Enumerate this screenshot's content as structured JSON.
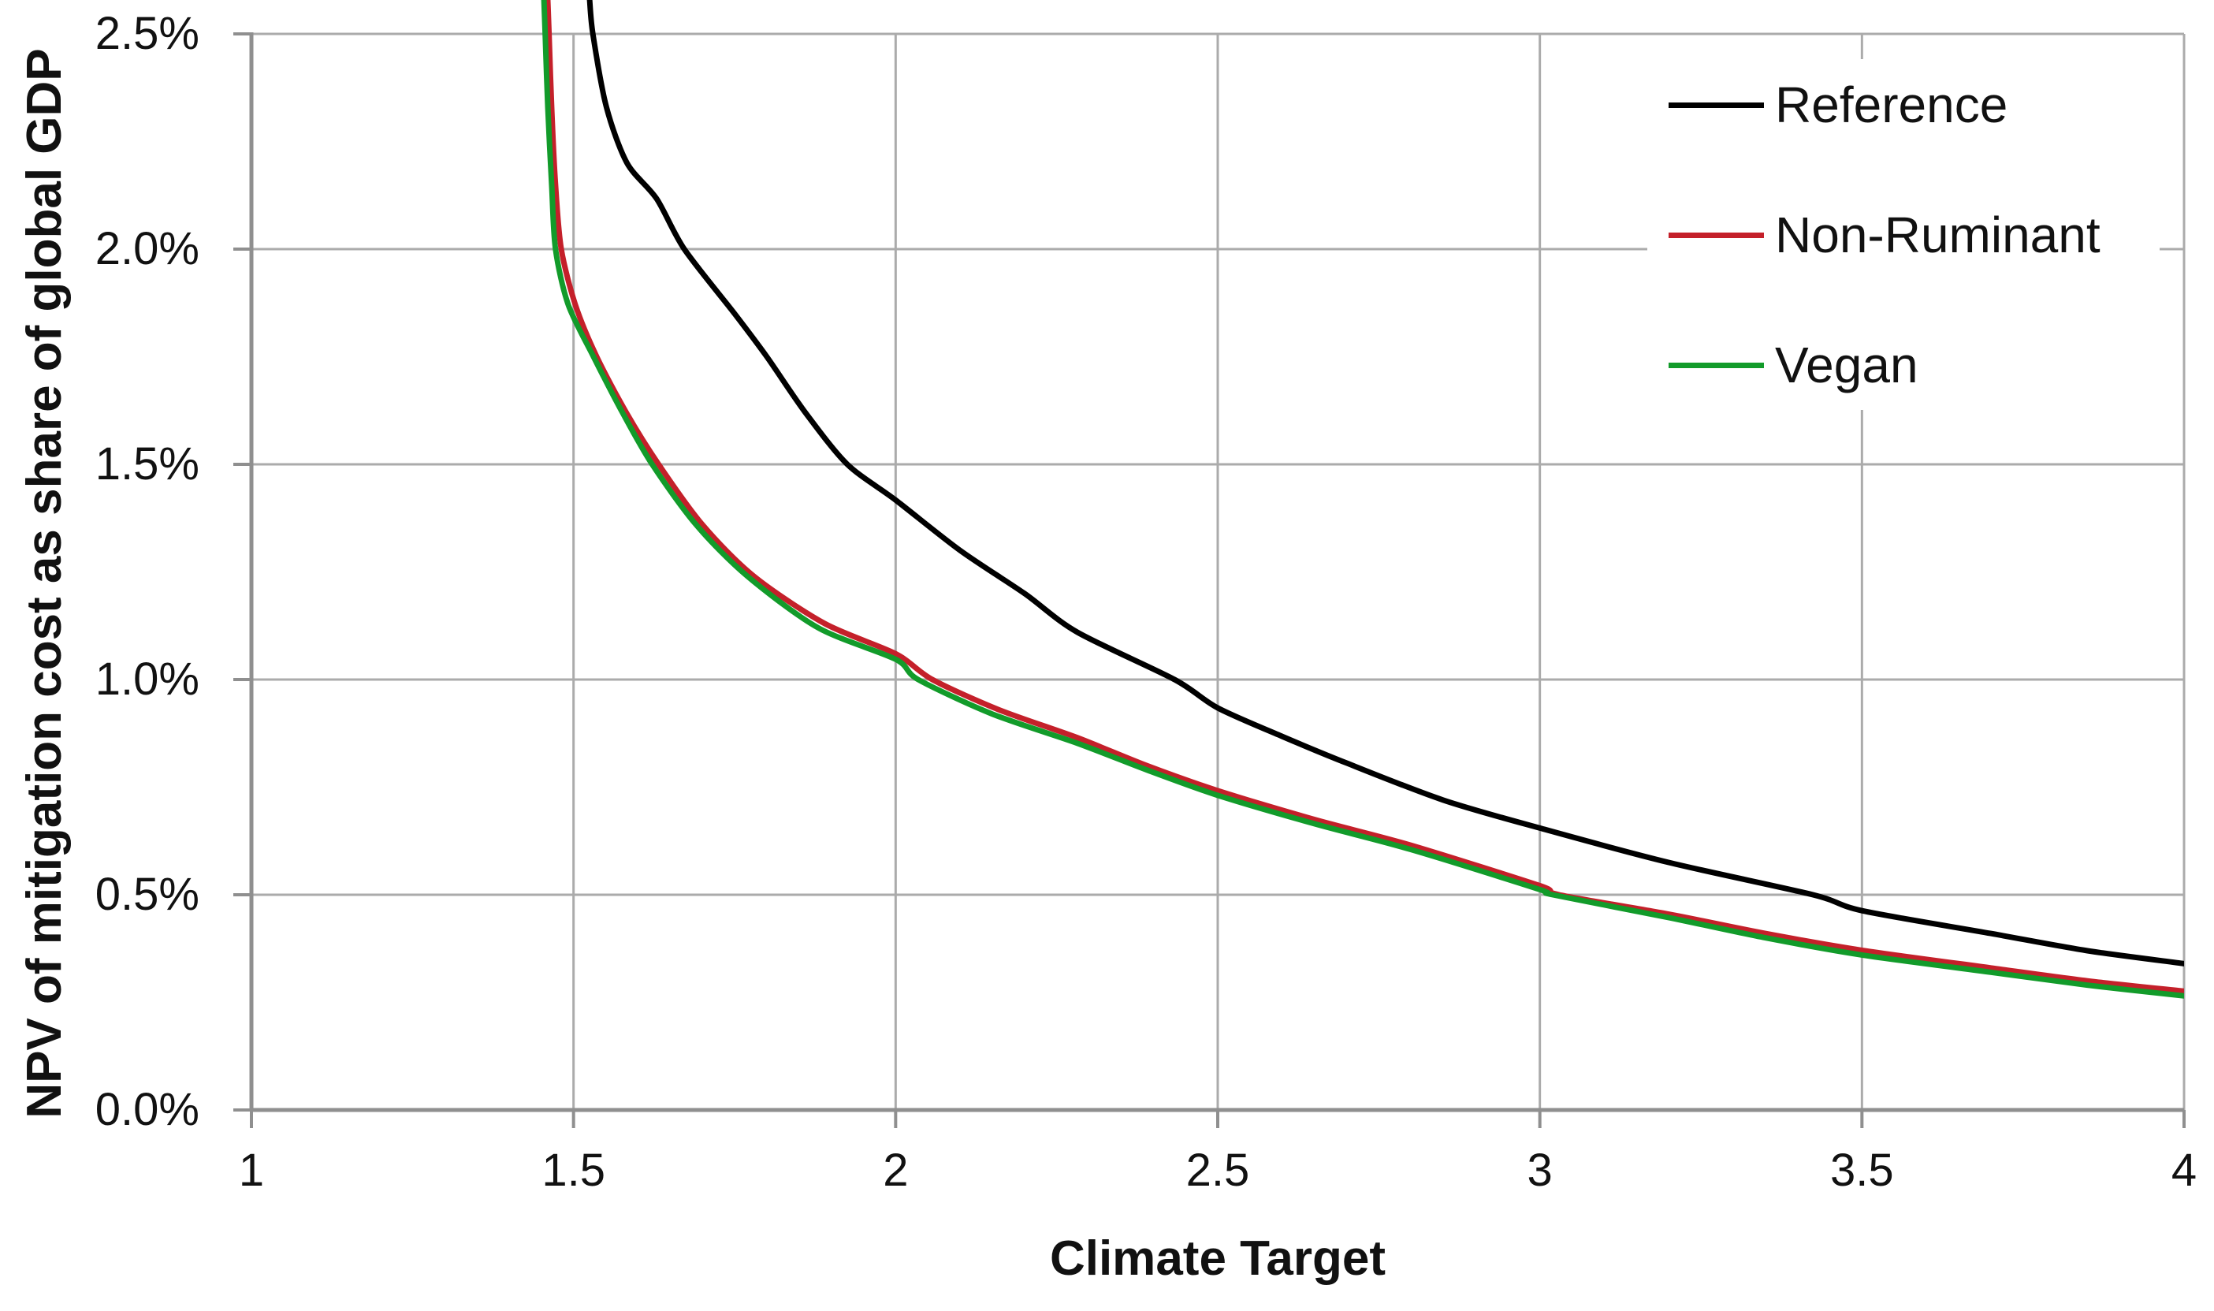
{
  "chart_data": {
    "type": "line",
    "title": "",
    "xlabel": "Climate Target",
    "ylabel": "NPV of mitigation cost as share of global GDP",
    "xlim": [
      1,
      4
    ],
    "ylim": [
      0.0,
      2.5
    ],
    "y_unit": "percent",
    "grid": true,
    "legend_position": "top-right",
    "x_ticks": [
      {
        "value": 1,
        "label": "1"
      },
      {
        "value": 1.5,
        "label": "1.5"
      },
      {
        "value": 2,
        "label": "2"
      },
      {
        "value": 2.5,
        "label": "2.5"
      },
      {
        "value": 3,
        "label": "3"
      },
      {
        "value": 3.5,
        "label": "3.5"
      },
      {
        "value": 4,
        "label": "4"
      }
    ],
    "y_ticks": [
      {
        "value": 0.0,
        "label": "0.0%"
      },
      {
        "value": 0.5,
        "label": "0.5%"
      },
      {
        "value": 1.0,
        "label": "1.0%"
      },
      {
        "value": 1.5,
        "label": "1.5%"
      },
      {
        "value": 2.0,
        "label": "2.0%"
      },
      {
        "value": 2.5,
        "label": "2.5%"
      }
    ],
    "series": [
      {
        "name": "Reference",
        "color": "#000000",
        "points": [
          [
            1.525,
            2.579
          ],
          [
            1.53,
            2.5
          ],
          [
            1.551,
            2.33
          ],
          [
            1.583,
            2.2
          ],
          [
            1.629,
            2.117
          ],
          [
            1.672,
            2.0
          ],
          [
            1.75,
            1.85
          ],
          [
            1.8,
            1.75
          ],
          [
            1.86,
            1.62
          ],
          [
            1.925,
            1.5
          ],
          [
            2.0,
            1.417
          ],
          [
            2.1,
            1.3
          ],
          [
            2.2,
            1.2
          ],
          [
            2.282,
            1.11
          ],
          [
            2.433,
            1.0
          ],
          [
            2.5,
            0.934
          ],
          [
            2.6,
            0.868
          ],
          [
            2.7,
            0.806
          ],
          [
            2.85,
            0.72
          ],
          [
            3.0,
            0.655
          ],
          [
            3.2,
            0.575
          ],
          [
            3.424,
            0.5
          ],
          [
            3.5,
            0.463
          ],
          [
            3.7,
            0.41
          ],
          [
            3.85,
            0.37
          ],
          [
            4.0,
            0.34
          ]
        ]
      },
      {
        "name": "Non-Ruminant",
        "color": "#C4202A",
        "points": [
          [
            1.46,
            2.579
          ],
          [
            1.462,
            2.5
          ],
          [
            1.466,
            2.33
          ],
          [
            1.472,
            2.15
          ],
          [
            1.481,
            2.0
          ],
          [
            1.503,
            1.87
          ],
          [
            1.536,
            1.75
          ],
          [
            1.582,
            1.62
          ],
          [
            1.632,
            1.5
          ],
          [
            1.7,
            1.36
          ],
          [
            1.78,
            1.24
          ],
          [
            1.89,
            1.13
          ],
          [
            2.0,
            1.06
          ],
          [
            2.057,
            1.0
          ],
          [
            2.16,
            0.93
          ],
          [
            2.282,
            0.865
          ],
          [
            2.39,
            0.8
          ],
          [
            2.5,
            0.742
          ],
          [
            2.65,
            0.675
          ],
          [
            2.8,
            0.615
          ],
          [
            3.0,
            0.521
          ],
          [
            3.03,
            0.5
          ],
          [
            3.2,
            0.455
          ],
          [
            3.35,
            0.41
          ],
          [
            3.5,
            0.371
          ],
          [
            3.7,
            0.33
          ],
          [
            3.85,
            0.3
          ],
          [
            4.0,
            0.276
          ]
        ]
      },
      {
        "name": "Vegan",
        "color": "#129B2A",
        "points": [
          [
            1.454,
            2.579
          ],
          [
            1.456,
            2.5
          ],
          [
            1.46,
            2.33
          ],
          [
            1.466,
            2.15
          ],
          [
            1.472,
            2.0
          ],
          [
            1.492,
            1.87
          ],
          [
            1.531,
            1.75
          ],
          [
            1.576,
            1.62
          ],
          [
            1.622,
            1.5
          ],
          [
            1.69,
            1.36
          ],
          [
            1.77,
            1.24
          ],
          [
            1.88,
            1.12
          ],
          [
            2.0,
            1.047
          ],
          [
            2.035,
            1.0
          ],
          [
            2.15,
            0.92
          ],
          [
            2.282,
            0.852
          ],
          [
            2.39,
            0.79
          ],
          [
            2.5,
            0.731
          ],
          [
            2.65,
            0.665
          ],
          [
            2.8,
            0.605
          ],
          [
            3.0,
            0.512
          ],
          [
            3.02,
            0.5
          ],
          [
            3.2,
            0.447
          ],
          [
            3.35,
            0.4
          ],
          [
            3.5,
            0.36
          ],
          [
            3.7,
            0.32
          ],
          [
            3.85,
            0.29
          ],
          [
            4.0,
            0.265
          ]
        ]
      }
    ],
    "colors": {
      "background": "#FFFFFF",
      "gridline": "#ABABAB",
      "axis": "#8F8F8F",
      "text": "#111111"
    }
  }
}
